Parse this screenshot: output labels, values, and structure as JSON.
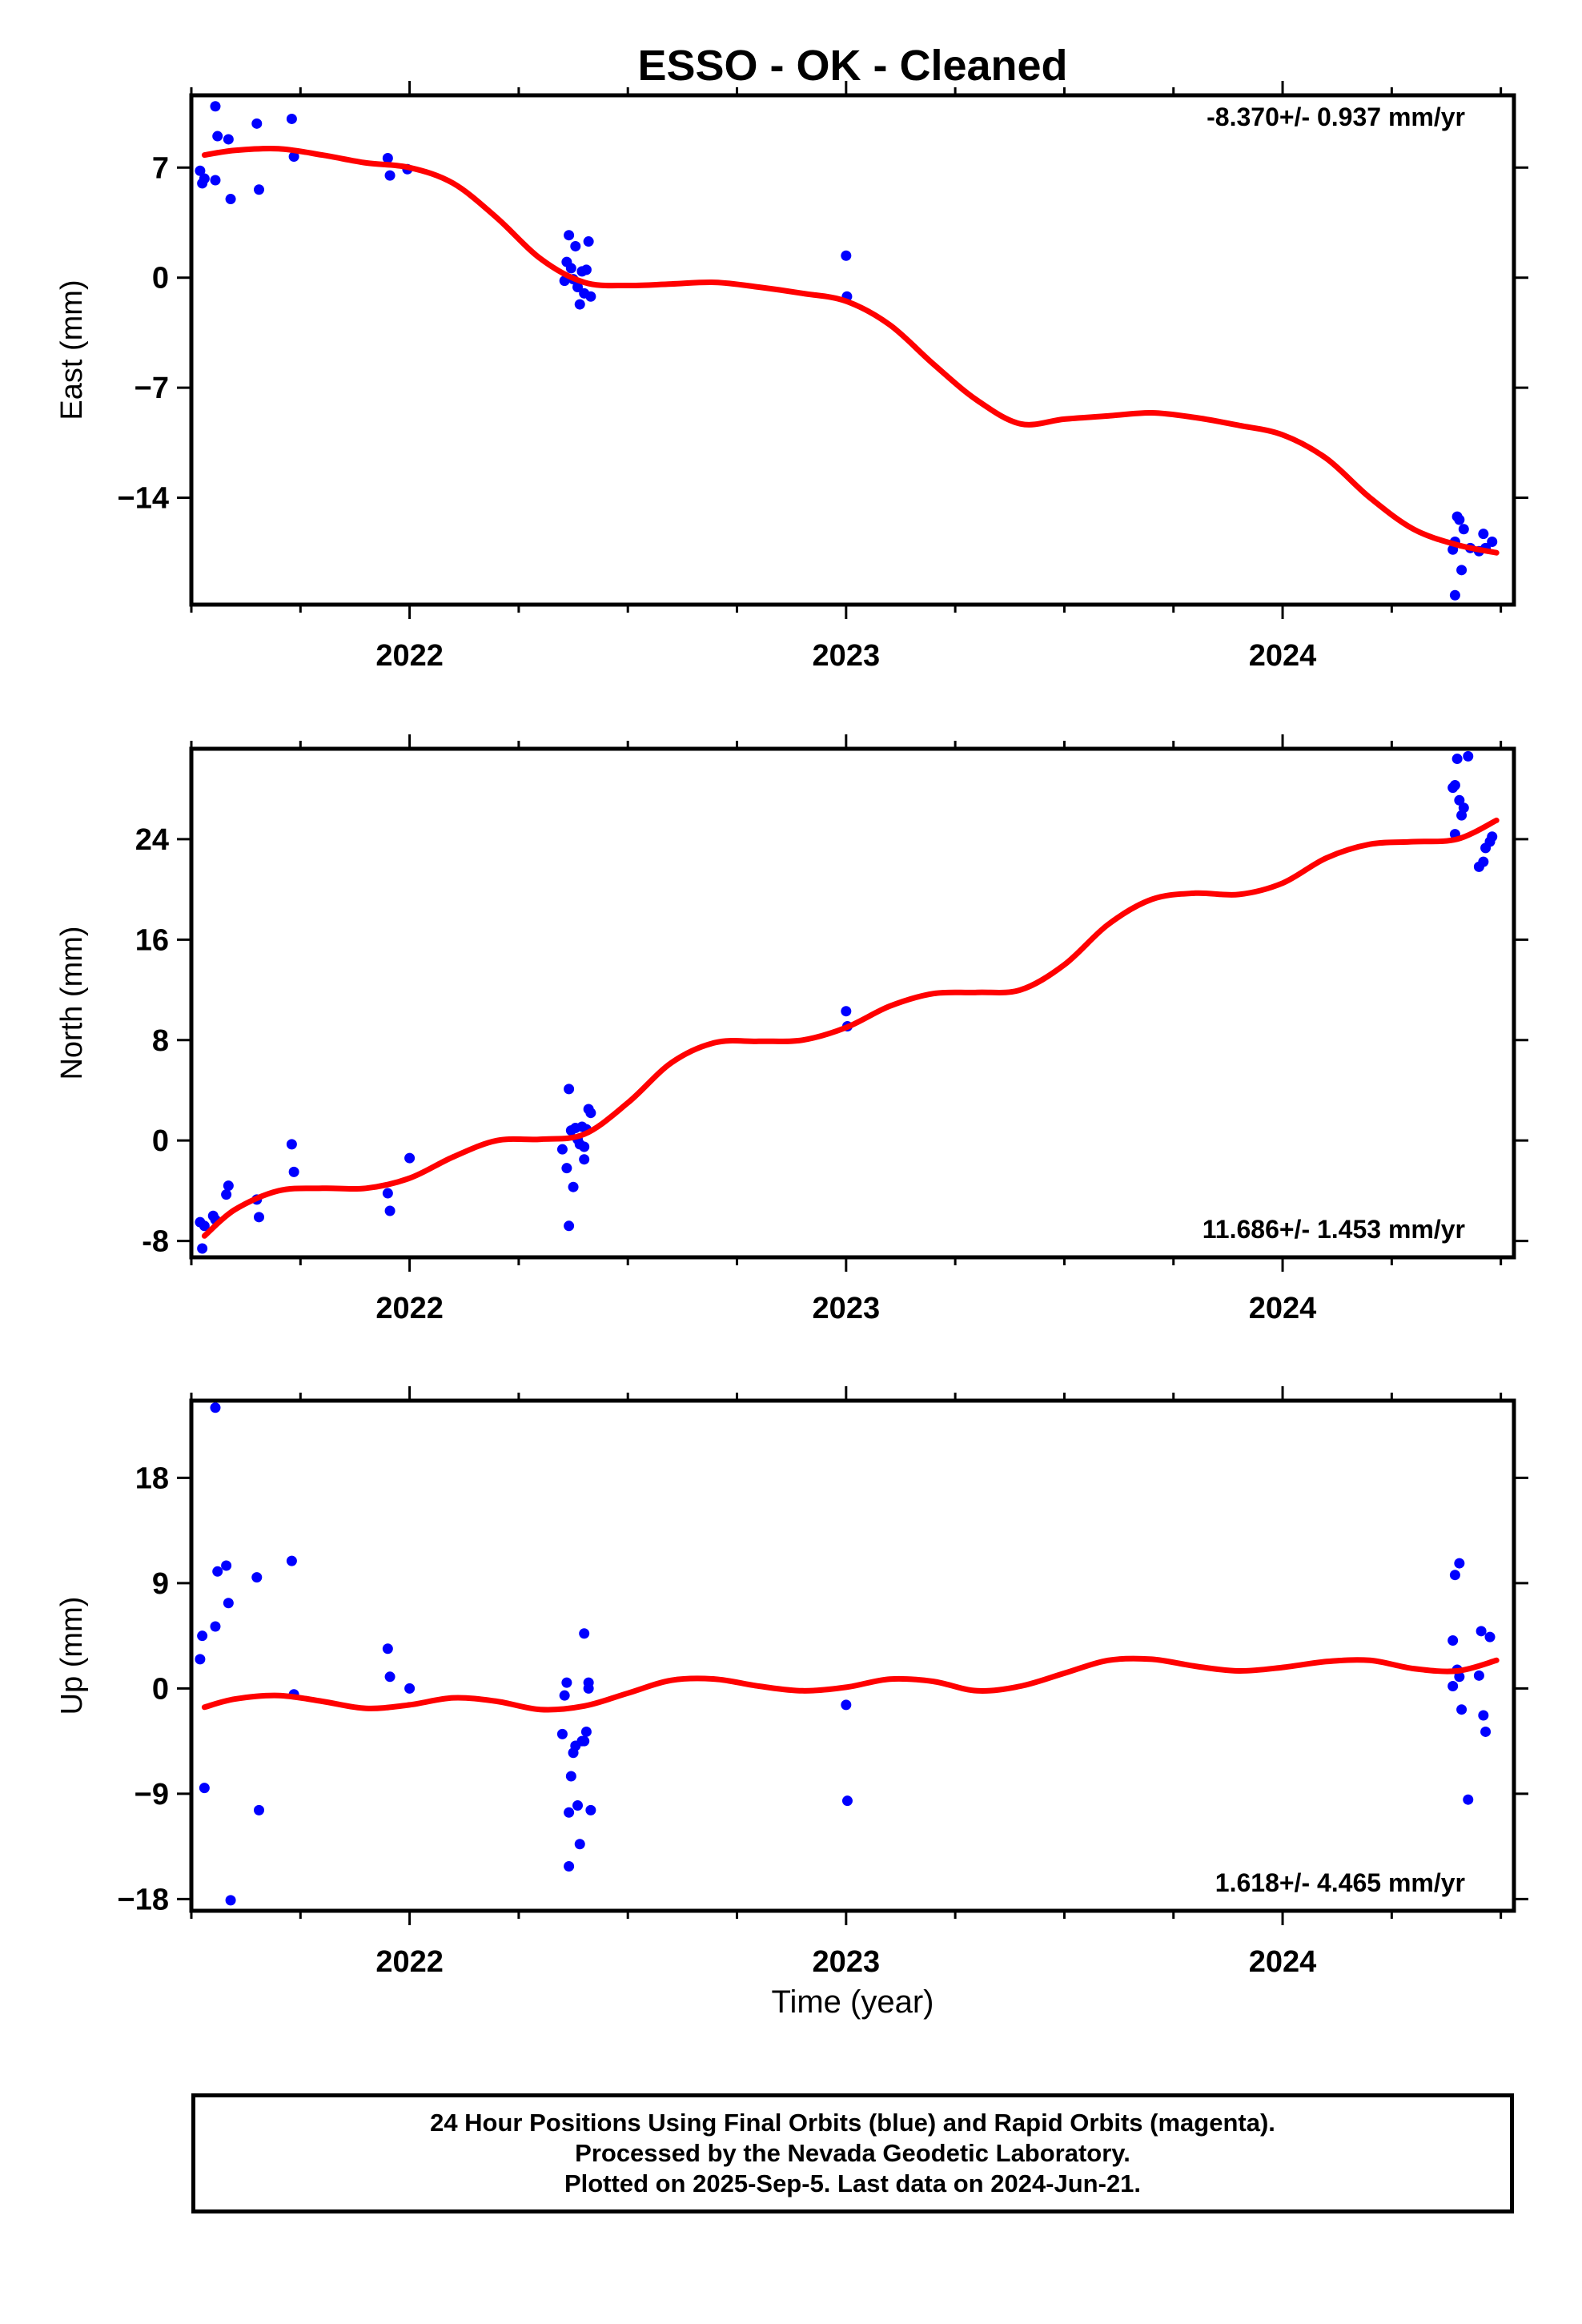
{
  "title": "ESSO  - OK - Cleaned",
  "xlabel": "Time (year)",
  "footer": {
    "line1": "24 Hour Positions Using Final Orbits (blue) and Rapid Orbits (magenta).",
    "line2": "Processed by the Nevada Geodetic Laboratory.",
    "line3": "Plotted on 2025-Sep-5. Last data on 2024-Jun-21."
  },
  "colors": {
    "data": "#0000ff",
    "fit": "#ff0000",
    "axis": "#000000"
  },
  "chart_data": [
    {
      "type": "scatter",
      "ylabel": "East (mm)",
      "rate_label": "-8.370+/- 0.937 mm/yr",
      "rate_position": "top-right",
      "xlim": [
        2021.5,
        2024.53
      ],
      "ylim": [
        -20.8,
        11.6
      ],
      "yticks": [
        7,
        0,
        -7,
        -14
      ],
      "ytick_labels": [
        "7",
        "0",
        "−7",
        "−14"
      ],
      "xticks": [
        2022,
        2023,
        2024
      ],
      "xtick_labels": [
        "2022",
        "2023",
        "2024"
      ],
      "points": [
        [
          2021.52,
          6.8
        ],
        [
          2021.525,
          6.0
        ],
        [
          2021.53,
          6.3
        ],
        [
          2021.555,
          10.9
        ],
        [
          2021.56,
          9.0
        ],
        [
          2021.555,
          6.2
        ],
        [
          2021.585,
          8.8
        ],
        [
          2021.59,
          5.0
        ],
        [
          2021.65,
          9.8
        ],
        [
          2021.655,
          5.6
        ],
        [
          2021.73,
          10.1
        ],
        [
          2021.735,
          7.7
        ],
        [
          2021.95,
          7.6
        ],
        [
          2021.955,
          6.5
        ],
        [
          2021.995,
          6.9
        ],
        [
          2022.36,
          1.0
        ],
        [
          2022.365,
          2.7
        ],
        [
          2022.37,
          0.6
        ],
        [
          2022.375,
          -0.1
        ],
        [
          2022.38,
          2.0
        ],
        [
          2022.385,
          -0.6
        ],
        [
          2022.39,
          -1.7
        ],
        [
          2022.395,
          0.4
        ],
        [
          2022.4,
          -1.0
        ],
        [
          2022.405,
          0.5
        ],
        [
          2022.41,
          2.3
        ],
        [
          2022.415,
          -1.2
        ],
        [
          2022.355,
          -0.2
        ],
        [
          2023.0,
          1.4
        ],
        [
          2023.002,
          -1.2
        ],
        [
          2024.39,
          -17.3
        ],
        [
          2024.395,
          -16.8
        ],
        [
          2024.4,
          -15.2
        ],
        [
          2024.405,
          -15.4
        ],
        [
          2024.41,
          -18.6
        ],
        [
          2024.415,
          -16.0
        ],
        [
          2024.43,
          -17.2
        ],
        [
          2024.45,
          -17.4
        ],
        [
          2024.46,
          -16.3
        ],
        [
          2024.465,
          -17.2
        ],
        [
          2024.48,
          -16.8
        ],
        [
          2024.395,
          -20.2
        ]
      ],
      "fit": [
        [
          2021.53,
          7.8
        ],
        [
          2021.6,
          8.1
        ],
        [
          2021.7,
          8.2
        ],
        [
          2021.8,
          7.8
        ],
        [
          2021.9,
          7.3
        ],
        [
          2022.0,
          7.0
        ],
        [
          2022.1,
          6.0
        ],
        [
          2022.2,
          3.8
        ],
        [
          2022.3,
          1.2
        ],
        [
          2022.4,
          -0.3
        ],
        [
          2022.5,
          -0.5
        ],
        [
          2022.6,
          -0.4
        ],
        [
          2022.7,
          -0.3
        ],
        [
          2022.8,
          -0.6
        ],
        [
          2022.9,
          -1.0
        ],
        [
          2023.0,
          -1.5
        ],
        [
          2023.1,
          -3.0
        ],
        [
          2023.2,
          -5.5
        ],
        [
          2023.3,
          -7.8
        ],
        [
          2023.4,
          -9.3
        ],
        [
          2023.5,
          -9.0
        ],
        [
          2023.6,
          -8.8
        ],
        [
          2023.7,
          -8.6
        ],
        [
          2023.8,
          -8.9
        ],
        [
          2023.9,
          -9.4
        ],
        [
          2024.0,
          -10.0
        ],
        [
          2024.1,
          -11.5
        ],
        [
          2024.2,
          -14.0
        ],
        [
          2024.3,
          -16.0
        ],
        [
          2024.4,
          -17.0
        ],
        [
          2024.49,
          -17.5
        ]
      ]
    },
    {
      "type": "scatter",
      "ylabel": "North (mm)",
      "rate_label": "11.686+/- 1.453 mm/yr",
      "rate_position": "bottom-right",
      "xlim": [
        2021.5,
        2024.53
      ],
      "ylim": [
        -9.3,
        31.2
      ],
      "yticks": [
        24,
        16,
        8,
        0,
        -8
      ],
      "ytick_labels": [
        "24",
        "16",
        "8",
        "0",
        "-8"
      ],
      "xticks": [
        2022,
        2023,
        2024
      ],
      "xtick_labels": [
        "2022",
        "2023",
        "2024"
      ],
      "points": [
        [
          2021.52,
          -6.5
        ],
        [
          2021.525,
          -8.6
        ],
        [
          2021.53,
          -6.8
        ],
        [
          2021.55,
          -6.0
        ],
        [
          2021.555,
          -6.3
        ],
        [
          2021.58,
          -4.3
        ],
        [
          2021.585,
          -3.6
        ],
        [
          2021.65,
          -4.7
        ],
        [
          2021.655,
          -6.1
        ],
        [
          2021.73,
          -0.3
        ],
        [
          2021.735,
          -2.5
        ],
        [
          2021.95,
          -4.2
        ],
        [
          2021.955,
          -5.6
        ],
        [
          2022.0,
          -1.4
        ],
        [
          2022.35,
          -0.7
        ],
        [
          2022.36,
          -2.2
        ],
        [
          2022.365,
          4.1
        ],
        [
          2022.37,
          0.8
        ],
        [
          2022.375,
          -3.7
        ],
        [
          2022.38,
          1.0
        ],
        [
          2022.385,
          0.1
        ],
        [
          2022.39,
          -0.3
        ],
        [
          2022.395,
          1.1
        ],
        [
          2022.4,
          -0.5
        ],
        [
          2022.405,
          0.9
        ],
        [
          2022.41,
          2.5
        ],
        [
          2022.415,
          2.2
        ],
        [
          2022.365,
          -6.8
        ],
        [
          2022.4,
          -1.5
        ],
        [
          2023.0,
          10.3
        ],
        [
          2023.003,
          9.1
        ],
        [
          2024.39,
          28.1
        ],
        [
          2024.395,
          28.3
        ],
        [
          2024.4,
          30.4
        ],
        [
          2024.405,
          27.1
        ],
        [
          2024.41,
          25.9
        ],
        [
          2024.415,
          26.5
        ],
        [
          2024.425,
          30.6
        ],
        [
          2024.395,
          24.4
        ],
        [
          2024.45,
          21.8
        ],
        [
          2024.46,
          22.2
        ],
        [
          2024.465,
          23.3
        ],
        [
          2024.475,
          23.8
        ],
        [
          2024.48,
          24.2
        ]
      ],
      "fit": [
        [
          2021.53,
          -7.6
        ],
        [
          2021.6,
          -5.5
        ],
        [
          2021.7,
          -4.0
        ],
        [
          2021.8,
          -3.8
        ],
        [
          2021.9,
          -3.8
        ],
        [
          2022.0,
          -3.0
        ],
        [
          2022.1,
          -1.3
        ],
        [
          2022.2,
          0.0
        ],
        [
          2022.3,
          0.1
        ],
        [
          2022.4,
          0.5
        ],
        [
          2022.5,
          3.0
        ],
        [
          2022.6,
          6.2
        ],
        [
          2022.7,
          7.8
        ],
        [
          2022.8,
          7.9
        ],
        [
          2022.9,
          8.0
        ],
        [
          2023.0,
          9.0
        ],
        [
          2023.1,
          10.7
        ],
        [
          2023.2,
          11.7
        ],
        [
          2023.3,
          11.8
        ],
        [
          2023.4,
          12.0
        ],
        [
          2023.5,
          14.0
        ],
        [
          2023.6,
          17.2
        ],
        [
          2023.7,
          19.2
        ],
        [
          2023.8,
          19.7
        ],
        [
          2023.9,
          19.6
        ],
        [
          2024.0,
          20.5
        ],
        [
          2024.1,
          22.5
        ],
        [
          2024.2,
          23.6
        ],
        [
          2024.3,
          23.8
        ],
        [
          2024.4,
          24.0
        ],
        [
          2024.49,
          25.5
        ]
      ]
    },
    {
      "type": "scatter",
      "ylabel": "Up (mm)",
      "rate_label": "1.618+/- 4.465 mm/yr",
      "rate_position": "bottom-right",
      "xlim": [
        2021.5,
        2024.53
      ],
      "ylim": [
        -19.0,
        24.6
      ],
      "yticks": [
        18,
        9,
        0,
        -9,
        -18
      ],
      "ytick_labels": [
        "18",
        "9",
        "0",
        "−9",
        "−18"
      ],
      "xticks": [
        2022,
        2023,
        2024
      ],
      "xtick_labels": [
        "2022",
        "2023",
        "2024"
      ],
      "points": [
        [
          2021.52,
          2.5
        ],
        [
          2021.525,
          4.5
        ],
        [
          2021.53,
          -8.5
        ],
        [
          2021.555,
          24.0
        ],
        [
          2021.56,
          10.0
        ],
        [
          2021.555,
          5.3
        ],
        [
          2021.58,
          10.5
        ],
        [
          2021.585,
          7.3
        ],
        [
          2021.59,
          -18.1
        ],
        [
          2021.65,
          9.5
        ],
        [
          2021.655,
          -10.4
        ],
        [
          2021.73,
          10.9
        ],
        [
          2021.735,
          -0.5
        ],
        [
          2021.95,
          3.4
        ],
        [
          2021.955,
          1.0
        ],
        [
          2022.0,
          0.0
        ],
        [
          2022.35,
          -3.9
        ],
        [
          2022.355,
          -0.6
        ],
        [
          2022.36,
          0.5
        ],
        [
          2022.365,
          -10.6
        ],
        [
          2022.37,
          -7.5
        ],
        [
          2022.375,
          -5.5
        ],
        [
          2022.38,
          -4.9
        ],
        [
          2022.385,
          -10.0
        ],
        [
          2022.39,
          -13.3
        ],
        [
          2022.395,
          -4.5
        ],
        [
          2022.4,
          4.7
        ],
        [
          2022.405,
          -3.7
        ],
        [
          2022.41,
          0.5
        ],
        [
          2022.415,
          -10.4
        ],
        [
          2022.365,
          -15.2
        ],
        [
          2022.41,
          0.0
        ],
        [
          2022.4,
          -4.5
        ],
        [
          2023.0,
          -1.4
        ],
        [
          2023.003,
          -9.6
        ],
        [
          2024.39,
          4.1
        ],
        [
          2024.395,
          9.7
        ],
        [
          2024.405,
          10.7
        ],
        [
          2024.39,
          0.2
        ],
        [
          2024.4,
          1.6
        ],
        [
          2024.41,
          -1.8
        ],
        [
          2024.425,
          -9.5
        ],
        [
          2024.45,
          1.1
        ],
        [
          2024.455,
          4.9
        ],
        [
          2024.46,
          -2.3
        ],
        [
          2024.465,
          -3.7
        ],
        [
          2024.475,
          4.4
        ],
        [
          2024.405,
          1.0
        ]
      ],
      "fit": [
        [
          2021.53,
          -1.6
        ],
        [
          2021.6,
          -0.9
        ],
        [
          2021.7,
          -0.6
        ],
        [
          2021.8,
          -1.1
        ],
        [
          2021.9,
          -1.7
        ],
        [
          2022.0,
          -1.4
        ],
        [
          2022.1,
          -0.8
        ],
        [
          2022.2,
          -1.1
        ],
        [
          2022.3,
          -1.8
        ],
        [
          2022.4,
          -1.5
        ],
        [
          2022.5,
          -0.4
        ],
        [
          2022.6,
          0.7
        ],
        [
          2022.7,
          0.8
        ],
        [
          2022.8,
          0.2
        ],
        [
          2022.9,
          -0.2
        ],
        [
          2023.0,
          0.1
        ],
        [
          2023.1,
          0.8
        ],
        [
          2023.2,
          0.6
        ],
        [
          2023.3,
          -0.2
        ],
        [
          2023.4,
          0.2
        ],
        [
          2023.5,
          1.3
        ],
        [
          2023.6,
          2.4
        ],
        [
          2023.7,
          2.5
        ],
        [
          2023.8,
          1.9
        ],
        [
          2023.9,
          1.5
        ],
        [
          2024.0,
          1.8
        ],
        [
          2024.1,
          2.3
        ],
        [
          2024.2,
          2.4
        ],
        [
          2024.3,
          1.7
        ],
        [
          2024.4,
          1.5
        ],
        [
          2024.49,
          2.4
        ]
      ]
    }
  ]
}
